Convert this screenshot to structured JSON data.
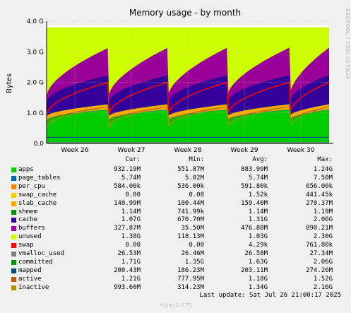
{
  "chart_data": {
    "type": "area",
    "title": "Memory usage - by month",
    "ylabel": "Bytes",
    "ylim": [
      0,
      4.0
    ],
    "yticks": [
      "0.0",
      "1.0 G",
      "2.0 G",
      "3.0 G",
      "4.0 G"
    ],
    "x_labels": [
      "Week 26",
      "Week 27",
      "Week 28",
      "Week 29",
      "Week 30"
    ],
    "grid": true,
    "legend_columns": [
      "Cur:",
      "Min:",
      "Avg:",
      "Max:"
    ],
    "legend": [
      {
        "name": "apps",
        "color": "#00cc00",
        "cur": "932.19M",
        "min": "551.87M",
        "avg": "883.99M",
        "max": "1.24G"
      },
      {
        "name": "page_tables",
        "color": "#0066b3",
        "cur": "5.74M",
        "min": "5.02M",
        "avg": "5.74M",
        "max": "7.50M"
      },
      {
        "name": "per_cpu",
        "color": "#ff8000",
        "cur": "584.00k",
        "min": "536.00k",
        "avg": "591.80k",
        "max": "656.00k"
      },
      {
        "name": "swap_cache",
        "color": "#ffcc00",
        "cur": "0.00",
        "min": "0.00",
        "avg": "1.52k",
        "max": "441.45k"
      },
      {
        "name": "slab_cache",
        "color": "#ffaa00",
        "cur": "140.99M",
        "min": "100.44M",
        "avg": "159.40M",
        "max": "270.37M"
      },
      {
        "name": "shmem",
        "color": "#008f00",
        "cur": "1.14M",
        "min": "741.99k",
        "avg": "1.14M",
        "max": "1.19M"
      },
      {
        "name": "cache",
        "color": "#330099",
        "cur": "1.07G",
        "min": "670.70M",
        "avg": "1.31G",
        "max": "2.06G"
      },
      {
        "name": "buffers",
        "color": "#990099",
        "cur": "327.87M",
        "min": "35.50M",
        "avg": "476.88M",
        "max": "890.21M"
      },
      {
        "name": "unused",
        "color": "#ccff00",
        "cur": "1.38G",
        "min": "118.13M",
        "avg": "1.03G",
        "max": "2.30G"
      },
      {
        "name": "swap",
        "color": "#ff0000",
        "cur": "0.00",
        "min": "0.00",
        "avg": "4.29k",
        "max": "761.80k"
      },
      {
        "name": "vmalloc_used",
        "color": "#808080",
        "cur": "26.53M",
        "min": "26.46M",
        "avg": "26.58M",
        "max": "27.34M"
      },
      {
        "name": "committed",
        "color": "#008f00",
        "cur": "1.71G",
        "min": "1.35G",
        "avg": "1.63G",
        "max": "2.06G"
      },
      {
        "name": "mapped",
        "color": "#00487d",
        "cur": "200.43M",
        "min": "186.23M",
        "avg": "203.11M",
        "max": "274.26M"
      },
      {
        "name": "active",
        "color": "#b35a00",
        "cur": "1.21G",
        "min": "777.95M",
        "avg": "1.18G",
        "max": "1.52G"
      },
      {
        "name": "inactive",
        "color": "#b38f00",
        "cur": "993.60M",
        "min": "314.23M",
        "avg": "1.34G",
        "max": "2.16G"
      }
    ]
  },
  "footer": {
    "last_update": "Last update: Sat Jul 26 21:00:17 2025",
    "munin_version": "Munin 2.0.75",
    "rrd_credit": "RRDTOOL / TOBI OETIKER"
  }
}
